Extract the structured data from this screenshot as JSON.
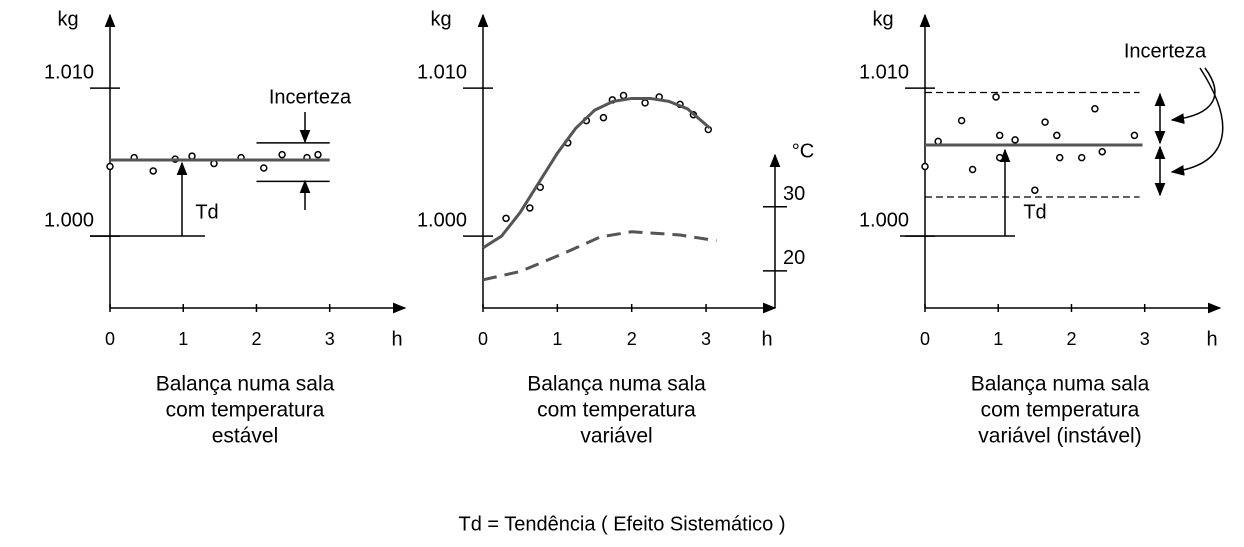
{
  "chart_data": [
    {
      "type": "scatter",
      "ylabel": "kg",
      "xlabel": "h",
      "caption": [
        "Balança numa sala",
        "com temperatura",
        "estável"
      ],
      "xlim": [
        0,
        3.96
      ],
      "xticks": [
        0,
        1,
        2,
        3
      ],
      "ylim": [
        0.99514,
        1.0146
      ],
      "yticks": [
        {
          "value": 1.01,
          "label": "1.010"
        },
        {
          "value": 1,
          "label": "1.000"
        }
      ],
      "annotations": [
        "Incerteza",
        "Td"
      ],
      "series": [
        {
          "style": "markers",
          "color": "#000000",
          "x": [
            0,
            0.33,
            0.59,
            0.89,
            1.12,
            1.42,
            1.79,
            2.1,
            2.35,
            2.69,
            2.84
          ],
          "values": [
            1.0047,
            1.0053,
            1.0044,
            1.0052,
            1.0054,
            1.0049,
            1.0053,
            1.0046,
            1.0055,
            1.0053,
            1.0055
          ]
        },
        {
          "style": "line",
          "color": "#555555",
          "x": [
            0,
            3
          ],
          "values": [
            1.00514,
            1.00514
          ]
        },
        {
          "style": "thin",
          "color": "#000000",
          "x": [
            2,
            3
          ],
          "values": [
            1.0063,
            1.0063
          ]
        },
        {
          "style": "thin",
          "color": "#000000",
          "x": [
            2,
            3
          ],
          "values": [
            1.0037,
            1.0037
          ]
        }
      ]
    },
    {
      "type": "scatter",
      "ylabel": "kg",
      "xlabel": "h",
      "caption": [
        "Balança numa sala",
        "com temperatura",
        "variável"
      ],
      "xlim": [
        0,
        3.86
      ],
      "xticks": [
        0,
        1,
        2,
        3
      ],
      "ylim": [
        0.99514,
        1.0146
      ],
      "yticks": [
        {
          "value": 1.01,
          "label": "1.010"
        },
        {
          "value": 1,
          "label": "1.000"
        }
      ],
      "y2label": "°C",
      "y2lim": [
        14.2,
        37.3
      ],
      "y2ticks": [
        30,
        20
      ],
      "series": [
        {
          "style": "markers",
          "color": "#000000",
          "x": [
            0.31,
            0.63,
            0.77,
            1.14,
            1.39,
            1.62,
            1.74,
            1.89,
            2.18,
            2.37,
            2.65,
            2.83,
            3.03
          ],
          "values": [
            1.0012,
            1.0019,
            1.0033,
            1.0063,
            1.0078,
            1.008,
            1.0092,
            1.0095,
            1.009,
            1.0094,
            1.0089,
            1.0082,
            1.0072
          ]
        },
        {
          "style": "line",
          "color": "#555555",
          "x": [
            0,
            0.25,
            0.5,
            0.75,
            1,
            1.25,
            1.5,
            1.75,
            2,
            2.25,
            2.5,
            2.75,
            3.05
          ],
          "values": [
            0.9992,
            1.0,
            1.0016,
            1.0036,
            1.0056,
            1.0073,
            1.0085,
            1.0091,
            1.0093,
            1.0093,
            1.0091,
            1.0086,
            1.0073
          ]
        },
        {
          "style": "dashed",
          "color": "#555555",
          "axis": "y2",
          "x": [
            0,
            0.5,
            1.04,
            1.58,
            2,
            2.65,
            3.14
          ],
          "values": [
            18.6,
            19.9,
            22.5,
            25.3,
            26.1,
            25.6,
            24.7
          ]
        }
      ]
    },
    {
      "type": "scatter",
      "ylabel": "kg",
      "xlabel": "h",
      "caption": [
        "Balança numa sala",
        "com temperatura",
        "variável (instável)"
      ],
      "xlim": [
        0,
        3.96
      ],
      "xticks": [
        0,
        1,
        2,
        3
      ],
      "ylim": [
        0.99514,
        1.0146
      ],
      "yticks": [
        {
          "value": 1.01,
          "label": "1.010"
        },
        {
          "value": 1,
          "label": "1.000"
        }
      ],
      "annotations": [
        "Incerteza",
        "Td"
      ],
      "series": [
        {
          "style": "markers",
          "color": "#000000",
          "x": [
            0,
            0.18,
            0.5,
            0.65,
            0.97,
            1.02,
            1.02,
            1.23,
            1.64,
            1.8,
            1.84,
            2.14,
            2.32,
            2.42,
            2.86,
            1.5
          ],
          "values": [
            1.0047,
            1.0064,
            1.0078,
            1.0045,
            1.0094,
            1.0053,
            1.0068,
            1.0065,
            1.0077,
            1.0068,
            1.0053,
            1.0053,
            1.0086,
            1.0057,
            1.0068,
            1.0031
          ]
        },
        {
          "style": "line",
          "color": "#555555",
          "x": [
            0,
            2.97
          ],
          "values": [
            1.00615,
            1.00615
          ]
        },
        {
          "style": "dashed-thin",
          "color": "#000000",
          "x": [
            0,
            2.93
          ],
          "values": [
            1.0097,
            1.0097
          ]
        },
        {
          "style": "dashed-thin",
          "color": "#000000",
          "x": [
            0,
            2.93
          ],
          "values": [
            1.00264,
            1.00264
          ]
        }
      ]
    }
  ],
  "footnote": "Td = Tendência ( Efeito Sistemático )"
}
